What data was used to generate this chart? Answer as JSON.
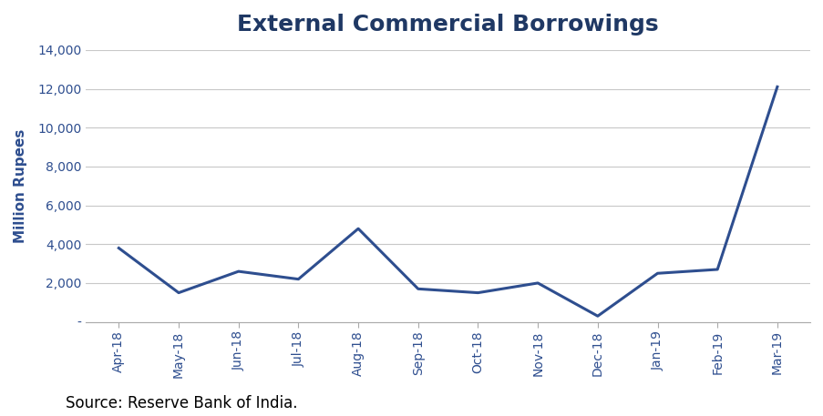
{
  "title": "External Commercial Borrowings",
  "ylabel": "Million Rupees",
  "source": "Source: Reserve Bank of India.",
  "categories": [
    "Apr-18",
    "May-18",
    "Jun-18",
    "Jul-18",
    "Aug-18",
    "Sep-18",
    "Oct-18",
    "Nov-18",
    "Dec-18",
    "Jan-19",
    "Feb-19",
    "Mar-19"
  ],
  "values": [
    3800,
    1500,
    2600,
    2200,
    4800,
    1700,
    1500,
    2000,
    300,
    2500,
    2700,
    12100
  ],
  "line_color": "#2E4E8F",
  "line_width": 2.2,
  "ylim": [
    0,
    14000
  ],
  "yticks": [
    0,
    2000,
    4000,
    6000,
    8000,
    10000,
    12000,
    14000
  ],
  "ytick_labels": [
    "-",
    "2,000",
    "4,000",
    "6,000",
    "8,000",
    "10,000",
    "12,000",
    "14,000"
  ],
  "title_fontsize": 18,
  "title_fontweight": "bold",
  "title_color": "#1F3864",
  "axis_label_fontsize": 11,
  "tick_fontsize": 10,
  "source_fontsize": 12,
  "tick_color": "#2E4E8F",
  "background_color": "#FFFFFF",
  "grid_color": "#C8C8C8",
  "grid_linewidth": 0.8
}
